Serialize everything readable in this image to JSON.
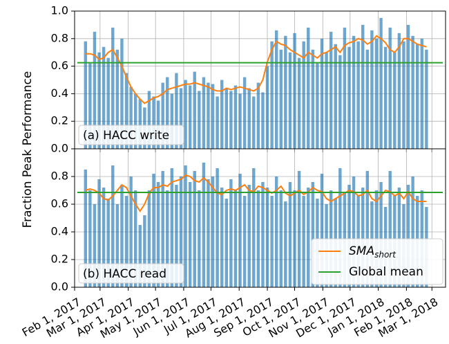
{
  "ylabel": "Fraction Peak Performance",
  "chart_data": [
    {
      "type": "bar",
      "annotation": "(a) HACC write",
      "x": [
        "2017-02-13",
        "2017-02-18",
        "2017-02-23",
        "2017-02-28",
        "2017-03-05",
        "2017-03-10",
        "2017-03-15",
        "2017-03-20",
        "2017-03-25",
        "2017-03-30",
        "2017-04-04",
        "2017-04-09",
        "2017-04-14",
        "2017-04-19",
        "2017-04-24",
        "2017-04-29",
        "2017-05-04",
        "2017-05-09",
        "2017-05-14",
        "2017-05-19",
        "2017-05-24",
        "2017-05-29",
        "2017-06-03",
        "2017-06-08",
        "2017-06-13",
        "2017-06-18",
        "2017-06-23",
        "2017-06-28",
        "2017-07-03",
        "2017-07-08",
        "2017-07-13",
        "2017-07-18",
        "2017-07-23",
        "2017-07-28",
        "2017-08-02",
        "2017-08-07",
        "2017-08-12",
        "2017-08-17",
        "2017-08-22",
        "2017-08-27",
        "2017-09-01",
        "2017-09-06",
        "2017-09-11",
        "2017-09-16",
        "2017-09-21",
        "2017-09-26",
        "2017-10-01",
        "2017-10-06",
        "2017-10-11",
        "2017-10-16",
        "2017-10-21",
        "2017-10-26",
        "2017-10-31",
        "2017-11-05",
        "2017-11-10",
        "2017-11-15",
        "2017-11-20",
        "2017-11-25",
        "2017-11-30",
        "2017-12-05",
        "2017-12-10",
        "2017-12-15",
        "2017-12-20",
        "2017-12-25",
        "2017-12-30",
        "2018-01-04",
        "2018-01-09",
        "2018-01-14",
        "2018-01-19",
        "2018-01-24",
        "2018-01-29",
        "2018-02-03",
        "2018-02-08",
        "2018-02-13",
        "2018-02-18",
        "2018-02-23"
      ],
      "bars": {
        "color": "#1f77b4",
        "values": [
          0.78,
          0.62,
          0.85,
          0.7,
          0.74,
          0.66,
          0.88,
          0.72,
          0.8,
          0.55,
          0.45,
          0.4,
          0.36,
          0.3,
          0.42,
          0.38,
          0.35,
          0.48,
          0.52,
          0.4,
          0.55,
          0.44,
          0.5,
          0.46,
          0.56,
          0.42,
          0.52,
          0.48,
          0.47,
          0.38,
          0.5,
          0.44,
          0.42,
          0.46,
          0.4,
          0.52,
          0.44,
          0.38,
          0.48,
          0.41,
          0.6,
          0.78,
          0.86,
          0.72,
          0.82,
          0.7,
          0.84,
          0.66,
          0.78,
          0.88,
          0.72,
          0.62,
          0.8,
          0.7,
          0.85,
          0.76,
          0.68,
          0.88,
          0.74,
          0.82,
          0.78,
          0.9,
          0.72,
          0.86,
          0.8,
          0.95,
          0.74,
          0.88,
          0.7,
          0.84,
          0.78,
          0.9,
          0.82,
          0.76,
          0.8,
          0.72
        ]
      },
      "series": [
        {
          "color": "#ff7f0e",
          "values": [
            0.69,
            0.69,
            0.68,
            0.65,
            0.66,
            0.7,
            0.72,
            0.66,
            0.6,
            0.52,
            0.45,
            0.4,
            0.36,
            0.33,
            0.35,
            0.37,
            0.38,
            0.4,
            0.43,
            0.44,
            0.45,
            0.46,
            0.47,
            0.47,
            0.48,
            0.47,
            0.46,
            0.45,
            0.43,
            0.42,
            0.42,
            0.44,
            0.43,
            0.44,
            0.45,
            0.44,
            0.43,
            0.42,
            0.44,
            0.5,
            0.63,
            0.72,
            0.78,
            0.76,
            0.75,
            0.72,
            0.7,
            0.68,
            0.66,
            0.7,
            0.68,
            0.66,
            0.69,
            0.7,
            0.72,
            0.74,
            0.7,
            0.75,
            0.77,
            0.78,
            0.8,
            0.79,
            0.76,
            0.78,
            0.82,
            0.8,
            0.77,
            0.72,
            0.7,
            0.74,
            0.8,
            0.8,
            0.78,
            0.76,
            0.75,
            0.74
          ]
        },
        {
          "color": "#2ca02c",
          "value": 0.625
        }
      ],
      "xlim": [
        "2017-02-01",
        "2018-03-16"
      ],
      "xticks": [
        "2017-02-01",
        "2017-03-01",
        "2017-04-01",
        "2017-05-01",
        "2017-06-01",
        "2017-07-01",
        "2017-08-01",
        "2017-09-01",
        "2017-10-01",
        "2017-11-01",
        "2017-12-01",
        "2018-01-01",
        "2018-02-01",
        "2018-03-01"
      ],
      "ylim": [
        0,
        1
      ],
      "yticks": [
        {
          "value": 0,
          "label": "0.0"
        },
        {
          "value": 0.2,
          "label": "0.2"
        },
        {
          "value": 0.4,
          "label": "0.4"
        },
        {
          "value": 0.6,
          "label": "0.6"
        },
        {
          "value": 0.8,
          "label": "0.8"
        },
        {
          "value": 1,
          "label": "1.0"
        }
      ],
      "grid": true
    },
    {
      "type": "bar",
      "annotation": "(b) HACC read",
      "x": [
        "2017-02-13",
        "2017-02-18",
        "2017-02-23",
        "2017-02-28",
        "2017-03-05",
        "2017-03-10",
        "2017-03-15",
        "2017-03-20",
        "2017-03-25",
        "2017-03-30",
        "2017-04-04",
        "2017-04-09",
        "2017-04-14",
        "2017-04-19",
        "2017-04-24",
        "2017-04-29",
        "2017-05-04",
        "2017-05-09",
        "2017-05-14",
        "2017-05-19",
        "2017-05-24",
        "2017-05-29",
        "2017-06-03",
        "2017-06-08",
        "2017-06-13",
        "2017-06-18",
        "2017-06-23",
        "2017-06-28",
        "2017-07-03",
        "2017-07-08",
        "2017-07-13",
        "2017-07-18",
        "2017-07-23",
        "2017-07-28",
        "2017-08-02",
        "2017-08-07",
        "2017-08-12",
        "2017-08-17",
        "2017-08-22",
        "2017-08-27",
        "2017-09-01",
        "2017-09-06",
        "2017-09-11",
        "2017-09-16",
        "2017-09-21",
        "2017-09-26",
        "2017-10-01",
        "2017-10-06",
        "2017-10-11",
        "2017-10-16",
        "2017-10-21",
        "2017-10-26",
        "2017-10-31",
        "2017-11-05",
        "2017-11-10",
        "2017-11-15",
        "2017-11-20",
        "2017-11-25",
        "2017-11-30",
        "2017-12-05",
        "2017-12-10",
        "2017-12-15",
        "2017-12-20",
        "2017-12-25",
        "2017-12-30",
        "2018-01-04",
        "2018-01-09",
        "2018-01-14",
        "2018-01-19",
        "2018-01-24",
        "2018-01-29",
        "2018-02-03",
        "2018-02-08",
        "2018-02-13",
        "2018-02-18",
        "2018-02-23"
      ],
      "bars": {
        "color": "#1f77b4",
        "values": [
          0.85,
          0.7,
          0.6,
          0.78,
          0.72,
          0.64,
          0.88,
          0.6,
          0.74,
          0.66,
          0.8,
          0.7,
          0.45,
          0.52,
          0.7,
          0.82,
          0.76,
          0.84,
          0.7,
          0.86,
          0.74,
          0.8,
          0.88,
          0.76,
          0.84,
          0.7,
          0.9,
          0.78,
          0.8,
          0.86,
          0.72,
          0.64,
          0.78,
          0.7,
          0.82,
          0.66,
          0.74,
          0.86,
          0.7,
          0.76,
          0.72,
          0.66,
          0.8,
          0.7,
          0.62,
          0.76,
          0.7,
          0.84,
          0.66,
          0.72,
          0.76,
          0.64,
          0.82,
          0.6,
          0.7,
          0.64,
          0.86,
          0.68,
          0.74,
          0.8,
          0.66,
          0.72,
          0.84,
          0.62,
          0.7,
          0.76,
          0.58,
          0.84,
          0.66,
          0.72,
          0.6,
          0.74,
          0.8,
          0.66,
          0.7,
          0.58
        ]
      },
      "series": [
        {
          "name": "SMA",
          "subscript": "short",
          "color": "#ff7f0e",
          "values": [
            0.7,
            0.71,
            0.7,
            0.68,
            0.64,
            0.63,
            0.66,
            0.7,
            0.74,
            0.72,
            0.66,
            0.6,
            0.55,
            0.6,
            0.68,
            0.72,
            0.72,
            0.74,
            0.73,
            0.76,
            0.77,
            0.78,
            0.81,
            0.8,
            0.77,
            0.76,
            0.79,
            0.76,
            0.72,
            0.68,
            0.67,
            0.7,
            0.71,
            0.7,
            0.72,
            0.74,
            0.7,
            0.69,
            0.73,
            0.72,
            0.7,
            0.68,
            0.7,
            0.73,
            0.68,
            0.66,
            0.68,
            0.7,
            0.67,
            0.69,
            0.72,
            0.7,
            0.69,
            0.64,
            0.62,
            0.64,
            0.66,
            0.68,
            0.7,
            0.69,
            0.66,
            0.67,
            0.7,
            0.64,
            0.62,
            0.66,
            0.7,
            0.69,
            0.66,
            0.68,
            0.64,
            0.69,
            0.64,
            0.62,
            0.62,
            0.62
          ]
        },
        {
          "name": "Global mean",
          "color": "#2ca02c",
          "value": 0.685
        }
      ],
      "xlim": [
        "2017-02-01",
        "2018-03-16"
      ],
      "xticks": [
        {
          "value": "2017-02-01",
          "label": "Feb 1, 2017"
        },
        {
          "value": "2017-03-01",
          "label": "Mar 1, 2017"
        },
        {
          "value": "2017-04-01",
          "label": "Apr 1, 2017"
        },
        {
          "value": "2017-05-01",
          "label": "May 1, 2017"
        },
        {
          "value": "2017-06-01",
          "label": "Jun 1, 2017"
        },
        {
          "value": "2017-07-01",
          "label": "Jul 1, 2017"
        },
        {
          "value": "2017-08-01",
          "label": "Aug 1, 2017"
        },
        {
          "value": "2017-09-01",
          "label": "Sep 1, 2017"
        },
        {
          "value": "2017-10-01",
          "label": "Oct 1, 2017"
        },
        {
          "value": "2017-11-01",
          "label": "Nov 1, 2017"
        },
        {
          "value": "2017-12-01",
          "label": "Dec 1, 2017"
        },
        {
          "value": "2018-01-01",
          "label": "Jan 1, 2018"
        },
        {
          "value": "2018-02-01",
          "label": "Feb 1, 2018"
        },
        {
          "value": "2018-03-01",
          "label": "Mar 1, 2018"
        }
      ],
      "ylim": [
        0,
        1
      ],
      "yticks": [
        {
          "value": 0,
          "label": "0.0"
        },
        {
          "value": 0.2,
          "label": "0.2"
        },
        {
          "value": 0.4,
          "label": "0.4"
        },
        {
          "value": 0.6,
          "label": "0.6"
        },
        {
          "value": 0.8,
          "label": "0.8"
        }
      ],
      "grid": true,
      "legend": "lower right"
    }
  ]
}
